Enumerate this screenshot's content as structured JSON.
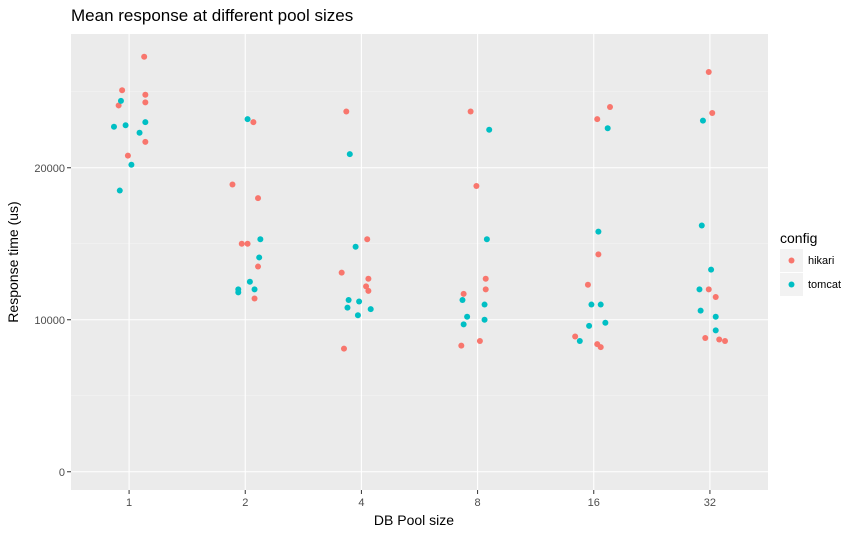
{
  "chart_data": {
    "type": "scatter",
    "title": "Mean response at different pool sizes",
    "xlabel": "DB Pool size",
    "ylabel": "Response time (us)",
    "categories": [
      "1",
      "2",
      "4",
      "8",
      "16",
      "32"
    ],
    "ylim": [
      -1200,
      28800
    ],
    "yticks": [
      0,
      10000,
      20000
    ],
    "ytick_labels": [
      "0",
      "10000",
      "20000"
    ],
    "grid": true,
    "legend": {
      "title": "config",
      "placement": "right"
    },
    "series": [
      {
        "name": "hikari",
        "color": "#F8766D",
        "points": [
          {
            "x": "1",
            "y": 25100,
            "jitter": -0.06
          },
          {
            "x": "1",
            "y": 24100,
            "jitter": -0.09
          },
          {
            "x": "1",
            "y": 27300,
            "jitter": 0.13
          },
          {
            "x": "1",
            "y": 24800,
            "jitter": 0.14
          },
          {
            "x": "1",
            "y": 24300,
            "jitter": 0.14
          },
          {
            "x": "1",
            "y": 21700,
            "jitter": 0.14
          },
          {
            "x": "1",
            "y": 20800,
            "jitter": -0.01
          },
          {
            "x": "2",
            "y": 18900,
            "jitter": -0.11
          },
          {
            "x": "2",
            "y": 23000,
            "jitter": 0.07
          },
          {
            "x": "2",
            "y": 18000,
            "jitter": 0.11
          },
          {
            "x": "2",
            "y": 15000,
            "jitter": -0.03
          },
          {
            "x": "2",
            "y": 15000,
            "jitter": 0.02
          },
          {
            "x": "2",
            "y": 13500,
            "jitter": 0.11
          },
          {
            "x": "2",
            "y": 11400,
            "jitter": 0.08
          },
          {
            "x": "4",
            "y": 23700,
            "jitter": -0.13
          },
          {
            "x": "4",
            "y": 15300,
            "jitter": 0.05
          },
          {
            "x": "4",
            "y": 13100,
            "jitter": -0.17
          },
          {
            "x": "4",
            "y": 12700,
            "jitter": 0.06
          },
          {
            "x": "4",
            "y": 12200,
            "jitter": 0.04
          },
          {
            "x": "4",
            "y": 11900,
            "jitter": 0.06
          },
          {
            "x": "4",
            "y": 8100,
            "jitter": -0.15
          },
          {
            "x": "8",
            "y": 23700,
            "jitter": -0.06
          },
          {
            "x": "8",
            "y": 18800,
            "jitter": -0.01
          },
          {
            "x": "8",
            "y": 12700,
            "jitter": 0.07
          },
          {
            "x": "8",
            "y": 12000,
            "jitter": 0.07
          },
          {
            "x": "8",
            "y": 11700,
            "jitter": -0.12
          },
          {
            "x": "8",
            "y": 8600,
            "jitter": 0.02
          },
          {
            "x": "8",
            "y": 8300,
            "jitter": -0.14
          },
          {
            "x": "16",
            "y": 24000,
            "jitter": 0.14
          },
          {
            "x": "16",
            "y": 23200,
            "jitter": 0.03
          },
          {
            "x": "16",
            "y": 14300,
            "jitter": 0.04
          },
          {
            "x": "16",
            "y": 12300,
            "jitter": -0.05
          },
          {
            "x": "16",
            "y": 8900,
            "jitter": -0.16
          },
          {
            "x": "16",
            "y": 8400,
            "jitter": 0.03
          },
          {
            "x": "16",
            "y": 8200,
            "jitter": 0.06
          },
          {
            "x": "32",
            "y": 26300,
            "jitter": -0.01
          },
          {
            "x": "32",
            "y": 23600,
            "jitter": 0.02
          },
          {
            "x": "32",
            "y": 12000,
            "jitter": -0.01
          },
          {
            "x": "32",
            "y": 11500,
            "jitter": 0.05
          },
          {
            "x": "32",
            "y": 8800,
            "jitter": -0.04
          },
          {
            "x": "32",
            "y": 8700,
            "jitter": 0.08
          },
          {
            "x": "32",
            "y": 8600,
            "jitter": 0.13
          }
        ]
      },
      {
        "name": "tomcat",
        "color": "#00BFC4",
        "points": [
          {
            "x": "1",
            "y": 24400,
            "jitter": -0.07
          },
          {
            "x": "1",
            "y": 22800,
            "jitter": -0.03
          },
          {
            "x": "1",
            "y": 23000,
            "jitter": 0.14
          },
          {
            "x": "1",
            "y": 22700,
            "jitter": -0.13
          },
          {
            "x": "1",
            "y": 22300,
            "jitter": 0.09
          },
          {
            "x": "1",
            "y": 20200,
            "jitter": 0.02
          },
          {
            "x": "1",
            "y": 18500,
            "jitter": -0.08
          },
          {
            "x": "2",
            "y": 23200,
            "jitter": 0.02
          },
          {
            "x": "2",
            "y": 15300,
            "jitter": 0.13
          },
          {
            "x": "2",
            "y": 14100,
            "jitter": 0.12
          },
          {
            "x": "2",
            "y": 12500,
            "jitter": 0.04
          },
          {
            "x": "2",
            "y": 12000,
            "jitter": 0.08
          },
          {
            "x": "2",
            "y": 12000,
            "jitter": -0.06
          },
          {
            "x": "2",
            "y": 11800,
            "jitter": -0.06
          },
          {
            "x": "4",
            "y": 20900,
            "jitter": -0.1
          },
          {
            "x": "4",
            "y": 14800,
            "jitter": -0.05
          },
          {
            "x": "4",
            "y": 11300,
            "jitter": -0.11
          },
          {
            "x": "4",
            "y": 11200,
            "jitter": -0.02
          },
          {
            "x": "4",
            "y": 10800,
            "jitter": -0.12
          },
          {
            "x": "4",
            "y": 10700,
            "jitter": 0.08
          },
          {
            "x": "4",
            "y": 10300,
            "jitter": -0.03
          },
          {
            "x": "8",
            "y": 22500,
            "jitter": 0.1
          },
          {
            "x": "8",
            "y": 15300,
            "jitter": 0.08
          },
          {
            "x": "8",
            "y": 11300,
            "jitter": -0.13
          },
          {
            "x": "8",
            "y": 11000,
            "jitter": 0.06
          },
          {
            "x": "8",
            "y": 10200,
            "jitter": -0.09
          },
          {
            "x": "8",
            "y": 10000,
            "jitter": 0.06
          },
          {
            "x": "8",
            "y": 9700,
            "jitter": -0.12
          },
          {
            "x": "16",
            "y": 22600,
            "jitter": 0.12
          },
          {
            "x": "16",
            "y": 15800,
            "jitter": 0.04
          },
          {
            "x": "16",
            "y": 11000,
            "jitter": -0.02
          },
          {
            "x": "16",
            "y": 11000,
            "jitter": 0.06
          },
          {
            "x": "16",
            "y": 9800,
            "jitter": 0.1
          },
          {
            "x": "16",
            "y": 9600,
            "jitter": -0.04
          },
          {
            "x": "16",
            "y": 8600,
            "jitter": -0.12
          },
          {
            "x": "32",
            "y": 23100,
            "jitter": -0.06
          },
          {
            "x": "32",
            "y": 16200,
            "jitter": -0.07
          },
          {
            "x": "32",
            "y": 13300,
            "jitter": 0.01
          },
          {
            "x": "32",
            "y": 12000,
            "jitter": -0.09
          },
          {
            "x": "32",
            "y": 10600,
            "jitter": -0.08
          },
          {
            "x": "32",
            "y": 10200,
            "jitter": 0.05
          },
          {
            "x": "32",
            "y": 9300,
            "jitter": 0.05
          }
        ]
      }
    ]
  },
  "colors": {
    "panel_background": "#EBEBEB",
    "major_grid": "#FFFFFF",
    "minor_grid": "#F5F5F5",
    "text": "#000000",
    "tick_text": "#4D4D4D",
    "tick_mark": "#333333",
    "legend_key_background": "#F2F2F2"
  }
}
